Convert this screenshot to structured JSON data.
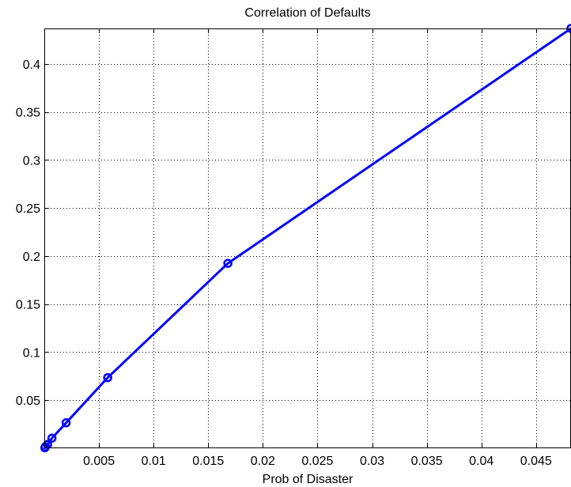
{
  "chart_data": {
    "type": "line",
    "title": "Correlation of Defaults",
    "xlabel": "Prob of Disaster",
    "ylabel": "",
    "xlim": [
      0,
      0.0482
    ],
    "ylim": [
      0,
      0.437
    ],
    "grid": true,
    "x_ticks": [
      0.005,
      0.01,
      0.015,
      0.02,
      0.025,
      0.03,
      0.035,
      0.04,
      0.045
    ],
    "x_tick_labels": [
      "0.005",
      "0.01",
      "0.015",
      "0.02",
      "0.025",
      "0.03",
      "0.035",
      "0.04",
      "0.045"
    ],
    "y_ticks": [
      0.05,
      0.1,
      0.15,
      0.2,
      0.25,
      0.3,
      0.35,
      0.4
    ],
    "y_tick_labels": [
      "0.05",
      "0.1",
      "0.15",
      "0.2",
      "0.25",
      "0.3",
      "0.35",
      "0.4"
    ],
    "series": [
      {
        "color": "#0000ff",
        "marker": "circle",
        "x": [
          5e-05,
          0.0001,
          0.0003,
          0.0007,
          0.002,
          0.0058,
          0.0168,
          0.0482
        ],
        "y": [
          0.0005,
          0.0015,
          0.004,
          0.0105,
          0.0265,
          0.0735,
          0.1925,
          0.437
        ]
      }
    ]
  }
}
